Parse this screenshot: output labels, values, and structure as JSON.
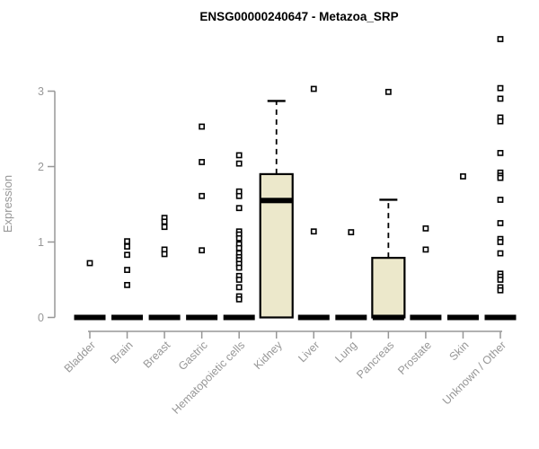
{
  "chart_data": {
    "type": "boxplot",
    "title": "ENSG00000240647 - Metazoa_SRP",
    "ylabel": "Expression",
    "xlabel": "",
    "ylim": [
      0,
      3.8
    ],
    "yticks": [
      0,
      1,
      2,
      3
    ],
    "grid": false,
    "legend": "none",
    "categories": [
      "Bladder",
      "Brain",
      "Breast",
      "Gastric",
      "Hematopoietic cells",
      "Kidney",
      "Liver",
      "Lung",
      "Pancreas",
      "Prostate",
      "Skin",
      "Unknown / Other"
    ],
    "boxes": [
      {
        "category": "Bladder",
        "q1": 0,
        "median": 0,
        "q3": 0,
        "whisker_low": 0,
        "whisker_high": 0,
        "outliers": [
          0.72
        ]
      },
      {
        "category": "Brain",
        "q1": 0,
        "median": 0,
        "q3": 0,
        "whisker_low": 0,
        "whisker_high": 0,
        "outliers": [
          1.01,
          0.94,
          0.83,
          0.63,
          0.43
        ]
      },
      {
        "category": "Breast",
        "q1": 0,
        "median": 0,
        "q3": 0,
        "whisker_low": 0,
        "whisker_high": 0,
        "outliers": [
          1.32,
          1.27,
          1.2,
          0.9,
          0.84
        ]
      },
      {
        "category": "Gastric",
        "q1": 0,
        "median": 0,
        "q3": 0,
        "whisker_low": 0,
        "whisker_high": 0,
        "outliers": [
          2.53,
          2.06,
          1.61,
          0.89
        ]
      },
      {
        "category": "Hematopoietic cells",
        "q1": 0,
        "median": 0,
        "q3": 0,
        "whisker_low": 0,
        "whisker_high": 0,
        "outliers": [
          2.15,
          2.04,
          1.67,
          1.61,
          1.45,
          1.14,
          1.1,
          1.05,
          0.97,
          0.92,
          0.85,
          0.8,
          0.76,
          0.71,
          0.66,
          0.55,
          0.5,
          0.4,
          0.28,
          0.24
        ]
      },
      {
        "category": "Kidney",
        "q1": 0,
        "median": 1.55,
        "q3": 1.9,
        "whisker_low": 0,
        "whisker_high": 2.87,
        "outliers": []
      },
      {
        "category": "Liver",
        "q1": 0,
        "median": 0,
        "q3": 0,
        "whisker_low": 0,
        "whisker_high": 0,
        "outliers": [
          3.03,
          1.14
        ]
      },
      {
        "category": "Lung",
        "q1": 0,
        "median": 0,
        "q3": 0,
        "whisker_low": 0,
        "whisker_high": 0,
        "outliers": [
          1.13
        ]
      },
      {
        "category": "Pancreas",
        "q1": 0,
        "median": 0,
        "q3": 0.79,
        "whisker_low": 0,
        "whisker_high": 1.56,
        "outliers": [
          2.99
        ]
      },
      {
        "category": "Prostate",
        "q1": 0,
        "median": 0,
        "q3": 0,
        "whisker_low": 0,
        "whisker_high": 0,
        "outliers": [
          1.18,
          0.9
        ]
      },
      {
        "category": "Skin",
        "q1": 0,
        "median": 0,
        "q3": 0,
        "whisker_low": 0,
        "whisker_high": 0,
        "outliers": [
          1.87
        ]
      },
      {
        "category": "Unknown / Other",
        "q1": 0,
        "median": 0,
        "q3": 0,
        "whisker_low": 0,
        "whisker_high": 0,
        "outliers": [
          3.69,
          3.04,
          2.9,
          2.65,
          2.6,
          2.18,
          1.92,
          1.88,
          1.85,
          1.56,
          1.25,
          1.04,
          1.0,
          0.85,
          0.58,
          0.54,
          0.5,
          0.4,
          0.36
        ]
      }
    ],
    "style": {
      "box_fill": "#ece8cb",
      "box_stroke": "#000000",
      "outlier_fill": "#ffffff",
      "axis_color": "#979797",
      "title_color": "#000000",
      "background": "#ffffff"
    }
  }
}
